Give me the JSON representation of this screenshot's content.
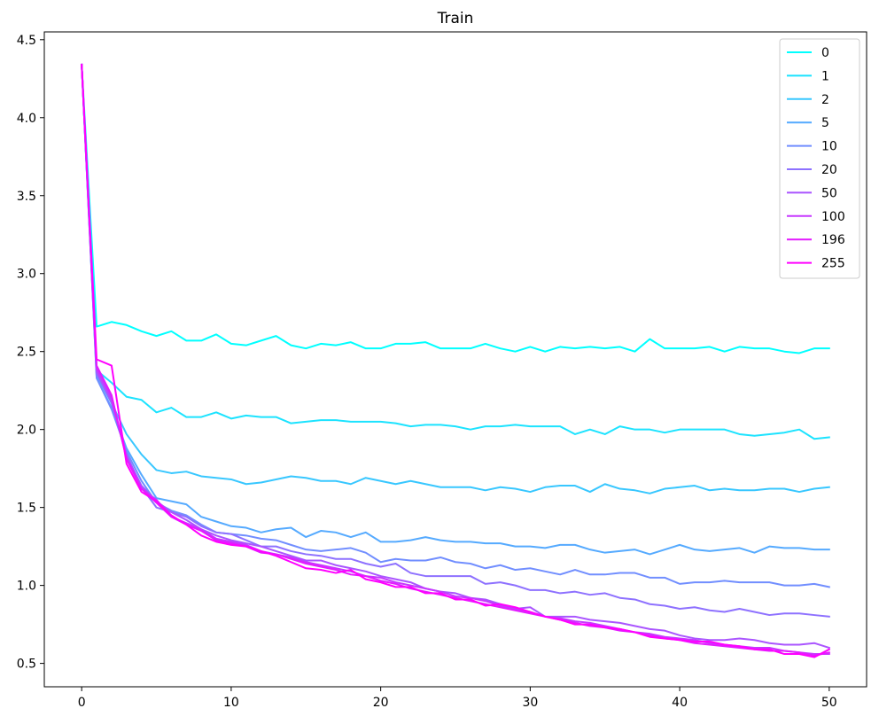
{
  "chart_data": {
    "type": "line",
    "title": "Train",
    "xlabel": "",
    "ylabel": "",
    "xlim": [
      -2.5,
      52.5
    ],
    "ylim": [
      0.35,
      4.55
    ],
    "xticks": [
      0,
      10,
      20,
      30,
      40,
      50
    ],
    "yticks": [
      0.5,
      1.0,
      1.5,
      2.0,
      2.5,
      3.0,
      3.5,
      4.0,
      4.5
    ],
    "ytick_labels": [
      "0.5",
      "1.0",
      "1.5",
      "2.0",
      "2.5",
      "3.0",
      "3.5",
      "4.0",
      "4.5"
    ],
    "grid": false,
    "legend_position": "top-right",
    "x": [
      0,
      1,
      2,
      3,
      4,
      5,
      6,
      7,
      8,
      9,
      10,
      11,
      12,
      13,
      14,
      15,
      16,
      17,
      18,
      19,
      20,
      21,
      22,
      23,
      24,
      25,
      26,
      27,
      28,
      29,
      30,
      31,
      32,
      33,
      34,
      35,
      36,
      37,
      38,
      39,
      40,
      41,
      42,
      43,
      44,
      45,
      46,
      47,
      48,
      49,
      50
    ],
    "series": [
      {
        "name": "0",
        "color": "#00ffff",
        "values": [
          4.34,
          2.66,
          2.69,
          2.67,
          2.63,
          2.6,
          2.63,
          2.57,
          2.57,
          2.61,
          2.55,
          2.54,
          2.57,
          2.6,
          2.54,
          2.52,
          2.55,
          2.54,
          2.56,
          2.52,
          2.52,
          2.55,
          2.55,
          2.56,
          2.52,
          2.52,
          2.52,
          2.55,
          2.52,
          2.5,
          2.53,
          2.5,
          2.53,
          2.52,
          2.53,
          2.52,
          2.53,
          2.5,
          2.58,
          2.52,
          2.52,
          2.52,
          2.53,
          2.5,
          2.53,
          2.52,
          2.52,
          2.5,
          2.49,
          2.52,
          2.52
        ]
      },
      {
        "name": "1",
        "color": "#1ce3ff",
        "values": [
          4.34,
          2.38,
          2.3,
          2.21,
          2.19,
          2.11,
          2.14,
          2.08,
          2.08,
          2.11,
          2.07,
          2.09,
          2.08,
          2.08,
          2.04,
          2.05,
          2.06,
          2.06,
          2.05,
          2.05,
          2.05,
          2.04,
          2.02,
          2.03,
          2.03,
          2.02,
          2.0,
          2.02,
          2.02,
          2.03,
          2.02,
          2.02,
          2.02,
          1.97,
          2.0,
          1.97,
          2.02,
          2.0,
          2.0,
          1.98,
          2.0,
          2.0,
          2.0,
          2.0,
          1.97,
          1.96,
          1.97,
          1.98,
          2.0,
          1.94,
          1.95
        ]
      },
      {
        "name": "2",
        "color": "#38c7ff",
        "values": [
          4.34,
          2.35,
          2.17,
          1.97,
          1.84,
          1.74,
          1.72,
          1.73,
          1.7,
          1.69,
          1.68,
          1.65,
          1.66,
          1.68,
          1.7,
          1.69,
          1.67,
          1.67,
          1.65,
          1.69,
          1.67,
          1.65,
          1.67,
          1.65,
          1.63,
          1.63,
          1.63,
          1.61,
          1.63,
          1.62,
          1.6,
          1.63,
          1.64,
          1.64,
          1.6,
          1.65,
          1.62,
          1.61,
          1.59,
          1.62,
          1.63,
          1.64,
          1.61,
          1.62,
          1.61,
          1.61,
          1.62,
          1.62,
          1.6,
          1.62,
          1.63
        ]
      },
      {
        "name": "5",
        "color": "#55aaff",
        "values": [
          4.34,
          2.33,
          2.14,
          1.88,
          1.71,
          1.56,
          1.54,
          1.52,
          1.44,
          1.41,
          1.38,
          1.37,
          1.34,
          1.36,
          1.37,
          1.31,
          1.35,
          1.34,
          1.31,
          1.34,
          1.28,
          1.28,
          1.29,
          1.31,
          1.29,
          1.28,
          1.28,
          1.27,
          1.27,
          1.25,
          1.25,
          1.24,
          1.26,
          1.26,
          1.23,
          1.21,
          1.22,
          1.23,
          1.2,
          1.23,
          1.26,
          1.23,
          1.22,
          1.23,
          1.24,
          1.21,
          1.25,
          1.24,
          1.24,
          1.23,
          1.23
        ]
      },
      {
        "name": "10",
        "color": "#718eff",
        "values": [
          4.34,
          2.33,
          2.13,
          1.86,
          1.67,
          1.53,
          1.48,
          1.45,
          1.39,
          1.34,
          1.33,
          1.32,
          1.3,
          1.29,
          1.26,
          1.23,
          1.22,
          1.23,
          1.24,
          1.21,
          1.15,
          1.17,
          1.16,
          1.16,
          1.18,
          1.15,
          1.14,
          1.11,
          1.13,
          1.1,
          1.11,
          1.09,
          1.07,
          1.1,
          1.07,
          1.07,
          1.08,
          1.08,
          1.05,
          1.05,
          1.01,
          1.02,
          1.02,
          1.03,
          1.02,
          1.02,
          1.02,
          1.0,
          1.0,
          1.01,
          0.99
        ]
      },
      {
        "name": "20",
        "color": "#8e71ff",
        "values": [
          4.34,
          2.36,
          2.17,
          1.84,
          1.63,
          1.5,
          1.47,
          1.44,
          1.38,
          1.34,
          1.33,
          1.29,
          1.25,
          1.25,
          1.22,
          1.2,
          1.19,
          1.17,
          1.17,
          1.14,
          1.12,
          1.14,
          1.08,
          1.06,
          1.06,
          1.06,
          1.06,
          1.01,
          1.02,
          1.0,
          0.97,
          0.97,
          0.95,
          0.96,
          0.94,
          0.95,
          0.92,
          0.91,
          0.88,
          0.87,
          0.85,
          0.86,
          0.84,
          0.83,
          0.85,
          0.83,
          0.81,
          0.82,
          0.82,
          0.81,
          0.8
        ]
      },
      {
        "name": "50",
        "color": "#aa55ff",
        "values": [
          4.34,
          2.37,
          2.18,
          1.83,
          1.64,
          1.54,
          1.47,
          1.42,
          1.36,
          1.32,
          1.29,
          1.27,
          1.25,
          1.22,
          1.19,
          1.16,
          1.16,
          1.13,
          1.11,
          1.09,
          1.06,
          1.04,
          1.02,
          0.98,
          0.96,
          0.95,
          0.92,
          0.91,
          0.88,
          0.85,
          0.86,
          0.8,
          0.8,
          0.8,
          0.78,
          0.77,
          0.76,
          0.74,
          0.72,
          0.71,
          0.68,
          0.66,
          0.65,
          0.65,
          0.66,
          0.65,
          0.63,
          0.62,
          0.62,
          0.63,
          0.6
        ]
      },
      {
        "name": "100",
        "color": "#c738ff",
        "values": [
          4.34,
          2.39,
          2.2,
          1.82,
          1.62,
          1.55,
          1.44,
          1.4,
          1.36,
          1.3,
          1.28,
          1.26,
          1.22,
          1.2,
          1.18,
          1.15,
          1.13,
          1.11,
          1.09,
          1.06,
          1.05,
          1.02,
          1.0,
          0.98,
          0.96,
          0.93,
          0.92,
          0.9,
          0.87,
          0.85,
          0.83,
          0.8,
          0.79,
          0.77,
          0.76,
          0.74,
          0.72,
          0.7,
          0.69,
          0.67,
          0.66,
          0.65,
          0.63,
          0.62,
          0.61,
          0.6,
          0.6,
          0.58,
          0.57,
          0.56,
          0.56
        ]
      },
      {
        "name": "196",
        "color": "#e31cff",
        "values": [
          4.34,
          2.41,
          2.22,
          1.81,
          1.62,
          1.53,
          1.44,
          1.39,
          1.35,
          1.29,
          1.27,
          1.25,
          1.21,
          1.2,
          1.17,
          1.14,
          1.12,
          1.1,
          1.07,
          1.06,
          1.03,
          1.01,
          0.98,
          0.96,
          0.94,
          0.92,
          0.9,
          0.88,
          0.86,
          0.84,
          0.82,
          0.8,
          0.78,
          0.76,
          0.74,
          0.73,
          0.71,
          0.7,
          0.68,
          0.66,
          0.65,
          0.63,
          0.62,
          0.61,
          0.6,
          0.59,
          0.58,
          0.58,
          0.57,
          0.55,
          0.57
        ]
      },
      {
        "name": "255",
        "color": "#ff00ff",
        "values": [
          4.34,
          2.45,
          2.41,
          1.78,
          1.6,
          1.54,
          1.45,
          1.39,
          1.32,
          1.28,
          1.26,
          1.25,
          1.22,
          1.19,
          1.15,
          1.11,
          1.1,
          1.08,
          1.1,
          1.04,
          1.02,
          0.99,
          0.99,
          0.95,
          0.95,
          0.91,
          0.91,
          0.87,
          0.88,
          0.86,
          0.83,
          0.8,
          0.78,
          0.75,
          0.75,
          0.73,
          0.72,
          0.7,
          0.67,
          0.66,
          0.65,
          0.64,
          0.64,
          0.62,
          0.61,
          0.59,
          0.59,
          0.56,
          0.56,
          0.54,
          0.59
        ]
      }
    ]
  }
}
